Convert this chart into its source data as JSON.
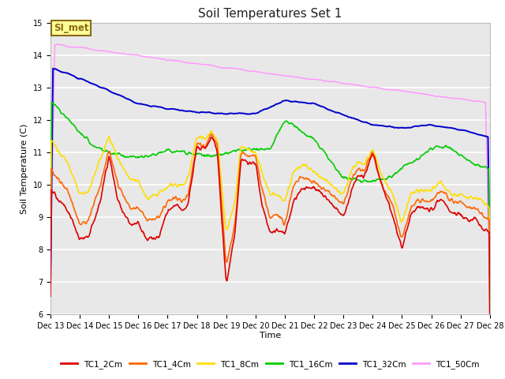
{
  "title": "Soil Temperatures Set 1",
  "xlabel": "Time",
  "ylabel": "Soil Temperature (C)",
  "ylim": [
    6.0,
    15.0
  ],
  "yticks": [
    6.0,
    7.0,
    8.0,
    9.0,
    10.0,
    11.0,
    12.0,
    13.0,
    14.0,
    15.0
  ],
  "bg_color": "#e8e8e8",
  "grid_color": "#ffffff",
  "series_colors": {
    "TC1_2Cm": "#dd0000",
    "TC1_4Cm": "#ff6600",
    "TC1_8Cm": "#ffdd00",
    "TC1_16Cm": "#00cc00",
    "TC1_32Cm": "#0000cc",
    "TC1_50Cm": "#ff99ff"
  },
  "annotation_text": "SI_met",
  "annotation_bg": "#ffff99",
  "annotation_border": "#8b6914",
  "legend_labels": [
    "TC1_2Cm",
    "TC1_4Cm",
    "TC1_8Cm",
    "TC1_16Cm",
    "TC1_32Cm",
    "TC1_50Cm"
  ],
  "n_points": 720,
  "title_fontsize": 11,
  "tick_fontsize": 7,
  "ylabel_fontsize": 8,
  "xlabel_fontsize": 8
}
